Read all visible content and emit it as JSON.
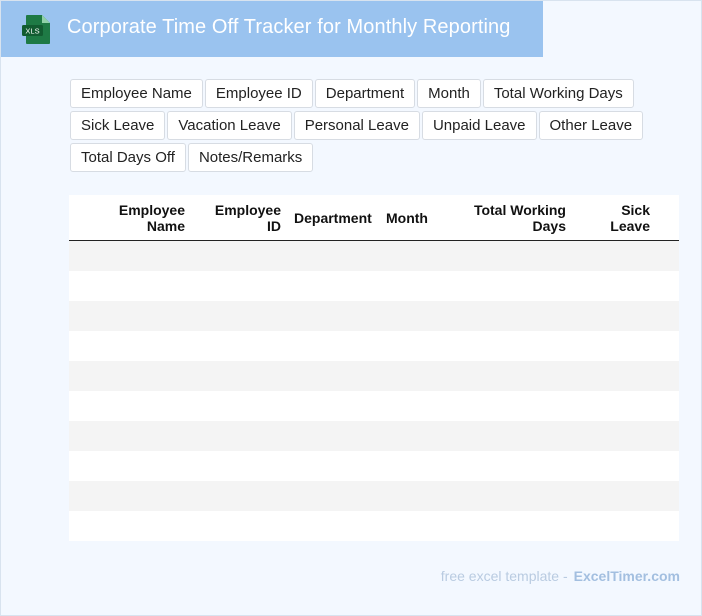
{
  "header": {
    "title": "Corporate Time Off Tracker for Monthly Reporting",
    "file_icon": "xls-file-icon",
    "file_icon_label": "XLS",
    "accent_color": "#9ac3ef"
  },
  "fields": [
    "Employee Name",
    "Employee ID",
    "Department",
    "Month",
    "Total Working Days",
    "Sick Leave",
    "Vacation Leave",
    "Personal Leave",
    "Unpaid Leave",
    "Other Leave",
    "Total Days Off",
    "Notes/Remarks"
  ],
  "table": {
    "columns": [
      [
        "Employee",
        "Name"
      ],
      [
        "Employee",
        "ID"
      ],
      [
        "Department"
      ],
      [
        "Month"
      ],
      [
        "Total Working",
        "Days"
      ],
      [
        "Sick",
        "Leave"
      ]
    ],
    "rows": [
      [
        "",
        "",
        "",
        "",
        "",
        ""
      ],
      [
        "",
        "",
        "",
        "",
        "",
        ""
      ],
      [
        "",
        "",
        "",
        "",
        "",
        ""
      ],
      [
        "",
        "",
        "",
        "",
        "",
        ""
      ],
      [
        "",
        "",
        "",
        "",
        "",
        ""
      ],
      [
        "",
        "",
        "",
        "",
        "",
        ""
      ],
      [
        "",
        "",
        "",
        "",
        "",
        ""
      ],
      [
        "",
        "",
        "",
        "",
        "",
        ""
      ],
      [
        "",
        "",
        "",
        "",
        "",
        ""
      ],
      [
        "",
        "",
        "",
        "",
        "",
        ""
      ]
    ],
    "header_line_color": "#222222",
    "stripe_color": "#f4f4f4"
  },
  "footer": {
    "prefix": "free excel template -",
    "brand": "ExcelTimer.com"
  }
}
